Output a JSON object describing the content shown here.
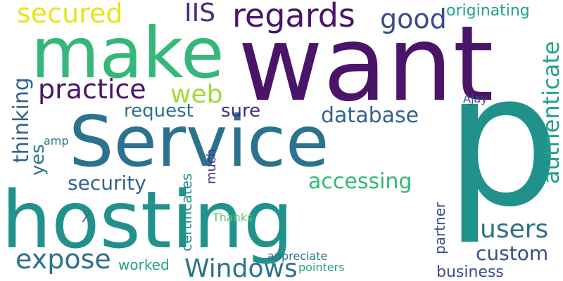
{
  "colors": {
    "background": "#ffffff",
    "dark_purple": "#4a1468",
    "purple": "#472d7b",
    "indigo": "#3b4d8a",
    "slate_blue": "#33638d",
    "blue_teal": "#2c728e",
    "teal": "#21918c",
    "teal_green": "#1fa187",
    "green": "#35b779",
    "light_green": "#5ec962",
    "yellow_green": "#a0da39",
    "yellow": "#e8e419"
  },
  "words": {
    "p": "p",
    "want": "want",
    "make": "make",
    "service": "Service",
    "hosting": "hosting",
    "regards": "regards",
    "secured": "secured",
    "iis": "IIS",
    "good": "good",
    "originating": "originating",
    "practice": "practice",
    "web": "web",
    "thinking": "thinking",
    "authenticate": "authenticate",
    "request": "request",
    "sure": "sure",
    "database": "database",
    "ajay": "Ajay",
    "yes": "yes",
    "amp": "amp",
    "certificates": "certificates",
    "much": "much",
    "security": "security",
    "accessing": "accessing",
    "users": "users",
    "custom": "custom",
    "partner": "partner",
    "x": "X",
    "thanks": "Thanks",
    "expose": "expose",
    "windows": "Windows",
    "worked": "worked",
    "appreciate": "appreciate",
    "pointers": "pointers",
    "business": "business"
  }
}
